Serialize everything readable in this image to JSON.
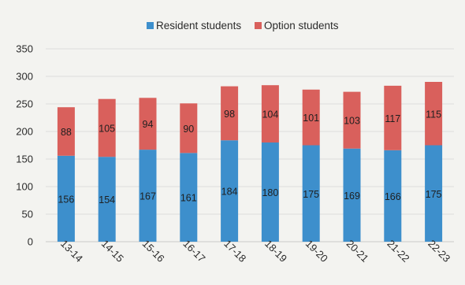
{
  "chart_data": {
    "type": "bar",
    "stacked": true,
    "categories": [
      "13-14",
      "14-15",
      "15-16",
      "16-17",
      "17-18",
      "18-19",
      "19-20",
      "20-21",
      "21-22",
      "22-23"
    ],
    "series": [
      {
        "name": "Resident students",
        "color": "#3d8fcc",
        "values": [
          156,
          154,
          167,
          161,
          184,
          180,
          175,
          169,
          166,
          175
        ]
      },
      {
        "name": "Option students",
        "color": "#d9605c",
        "values": [
          88,
          105,
          94,
          90,
          98,
          104,
          101,
          103,
          117,
          115
        ]
      }
    ],
    "ylim": [
      0,
      350
    ],
    "yticks": [
      0,
      50,
      100,
      150,
      200,
      250,
      300,
      350
    ],
    "grid": true,
    "legend_position": "top-center",
    "title": "",
    "xlabel": "",
    "ylabel": ""
  }
}
